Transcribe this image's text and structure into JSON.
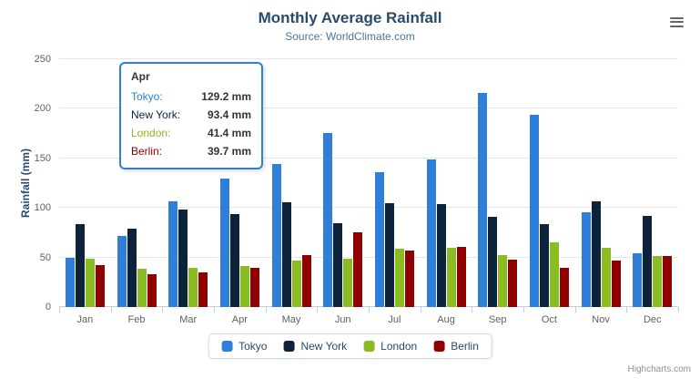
{
  "header": {
    "title": "Monthly Average Rainfall",
    "subtitle": "Source: WorldClimate.com"
  },
  "chart_data": {
    "type": "bar",
    "title": "Monthly Average Rainfall",
    "subtitle": "Source: WorldClimate.com",
    "categories": [
      "Jan",
      "Feb",
      "Mar",
      "Apr",
      "May",
      "Jun",
      "Jul",
      "Aug",
      "Sep",
      "Oct",
      "Nov",
      "Dec"
    ],
    "series": [
      {
        "name": "Tokyo",
        "color": "#2f7ed8",
        "values": [
          49.9,
          71.5,
          106.4,
          129.2,
          144.0,
          176.0,
          135.6,
          148.5,
          216.4,
          194.1,
          95.6,
          54.4
        ]
      },
      {
        "name": "New York",
        "color": "#0d233a",
        "values": [
          83.6,
          78.8,
          98.5,
          93.4,
          106.0,
          84.5,
          105.0,
          104.3,
          91.2,
          83.5,
          106.6,
          92.3
        ]
      },
      {
        "name": "London",
        "color": "#8bbc21",
        "values": [
          48.9,
          38.8,
          39.3,
          41.4,
          47.0,
          48.3,
          59.0,
          59.6,
          52.4,
          65.2,
          59.3,
          51.2
        ]
      },
      {
        "name": "Berlin",
        "color": "#910000",
        "values": [
          42.4,
          33.2,
          34.5,
          39.7,
          52.6,
          75.5,
          57.4,
          60.4,
          47.6,
          39.1,
          46.8,
          51.1
        ]
      }
    ],
    "xlabel": "",
    "ylabel": "Rainfall (mm)",
    "ylim": [
      0,
      250
    ],
    "yticks": [
      0,
      50,
      100,
      150,
      200,
      250
    ],
    "grid": true,
    "legend_position": "bottom"
  },
  "tooltip": {
    "header": "Apr",
    "rows": [
      {
        "label": "Tokyo:",
        "value": "129.2 mm",
        "color": "#2f7ed8"
      },
      {
        "label": "New York:",
        "value": "93.4 mm",
        "color": "#0d233a"
      },
      {
        "label": "London:",
        "value": "41.4 mm",
        "color": "#8bbc21"
      },
      {
        "label": "Berlin:",
        "value": "39.7 mm",
        "color": "#910000"
      }
    ]
  },
  "credits": {
    "label": "Highcharts.com"
  }
}
